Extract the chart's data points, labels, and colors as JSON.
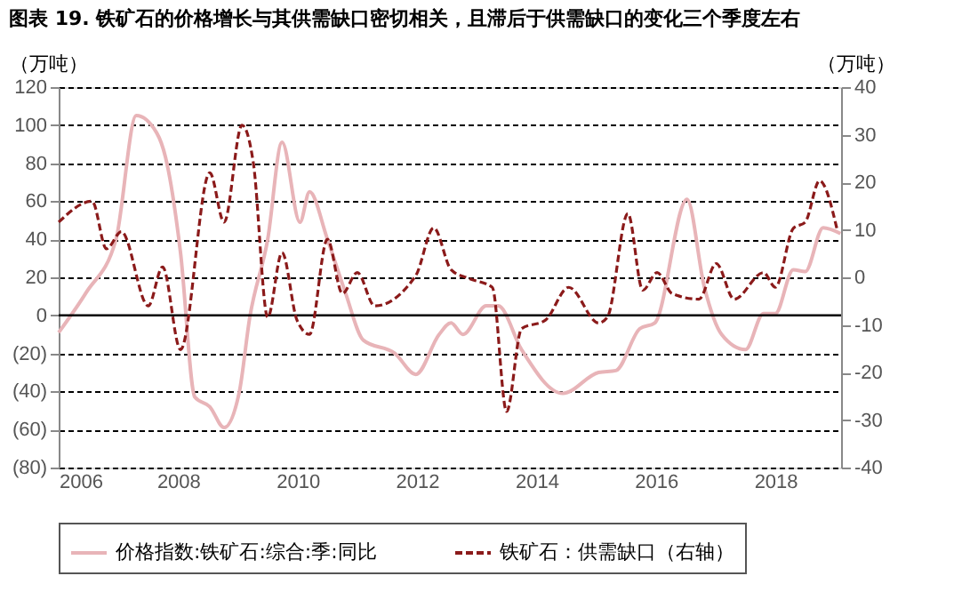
{
  "chart_data": {
    "type": "line",
    "title": "图表 19. 铁矿石的价格增长与其供需缺口密切相关，且滞后于供需缺口的变化三个季度左右",
    "ylabel": "（万吨）",
    "y2label": "（万吨）",
    "xlim": [
      2006,
      2019.1
    ],
    "xticks": [
      2006,
      2008,
      2010,
      2012,
      2014,
      2016,
      2018
    ],
    "ylim": [
      -80,
      120
    ],
    "yticks": [
      {
        "value": -80,
        "label": "(80)"
      },
      {
        "value": -60,
        "label": "(60)"
      },
      {
        "value": -40,
        "label": "(40)"
      },
      {
        "value": -20,
        "label": "(20)"
      },
      0,
      20,
      40,
      60,
      80,
      100,
      120
    ],
    "y2lim": [
      -40,
      40
    ],
    "y2ticks": [
      -40,
      -30,
      -20,
      -10,
      0,
      10,
      20,
      30,
      40
    ],
    "grid": "y",
    "legend": "bottom",
    "ref_lines": [
      {
        "axis": "y",
        "value": 0,
        "color": "#000000",
        "line_style": "solid"
      }
    ],
    "series": [
      {
        "name": "价格指数:铁矿石:综合:季:同比",
        "color": "#e8b4b8",
        "line_style": "solid",
        "x": [
          2006.0,
          2006.46,
          2006.96,
          2007.3,
          2007.64,
          2007.79,
          2008.04,
          2008.28,
          2008.53,
          2008.77,
          2009.02,
          2009.2,
          2009.5,
          2009.74,
          2010.04,
          2010.2,
          2010.5,
          2010.8,
          2011.1,
          2011.63,
          2011.98,
          2012.37,
          2012.57,
          2012.77,
          2013.16,
          2013.36,
          2013.75,
          2014.44,
          2015.04,
          2015.33,
          2015.73,
          2015.98,
          2016.52,
          2016.81,
          2017.1,
          2017.5,
          2017.8,
          2018.0,
          2018.3,
          2018.5,
          2018.8,
          2019.09
        ],
        "values": [
          -9,
          12,
          40,
          105,
          96,
          83,
          33,
          -43,
          -48,
          -59,
          -41,
          -1,
          40,
          91,
          49,
          65,
          40,
          12,
          -13,
          -20,
          -31,
          -10,
          -4,
          -10,
          5,
          5,
          -18,
          -41,
          -30,
          -29,
          -7,
          -4,
          61,
          15,
          -10,
          -18,
          1,
          1,
          24,
          23,
          46,
          43
        ]
      },
      {
        "name": "铁矿石：供需缺口（右轴）",
        "color": "#8b1a1a",
        "line_style": "dashed",
        "axis": "y2",
        "x": [
          2006.0,
          2006.56,
          2006.8,
          2007.05,
          2007.5,
          2007.74,
          2008.04,
          2008.53,
          2008.77,
          2009.07,
          2009.26,
          2009.5,
          2009.74,
          2009.99,
          2010.2,
          2010.5,
          2010.75,
          2011.0,
          2011.29,
          2011.98,
          2012.28,
          2012.57,
          2012.86,
          2013.26,
          2013.5,
          2013.75,
          2014.15,
          2014.54,
          2015.04,
          2015.19,
          2015.53,
          2015.78,
          2016.02,
          2016.27,
          2016.72,
          2017.01,
          2017.31,
          2017.8,
          2018.0,
          2018.3,
          2018.5,
          2018.74,
          2019.04
        ],
        "values": [
          11.6,
          16,
          6,
          9.6,
          -6,
          2.2,
          -15.2,
          22,
          11.6,
          32,
          24,
          -8.4,
          5.2,
          -9,
          -12,
          8,
          -3.4,
          1,
          -6,
          0.4,
          10.4,
          1.6,
          -0.2,
          -2.1,
          -28.2,
          -10.8,
          -9,
          -2.1,
          -9.6,
          -8.3,
          13.4,
          -2.7,
          1,
          -3.4,
          -4.6,
          2.9,
          -4.6,
          1,
          -2.1,
          10.3,
          11.6,
          20.3,
          9.7
        ]
      }
    ]
  }
}
